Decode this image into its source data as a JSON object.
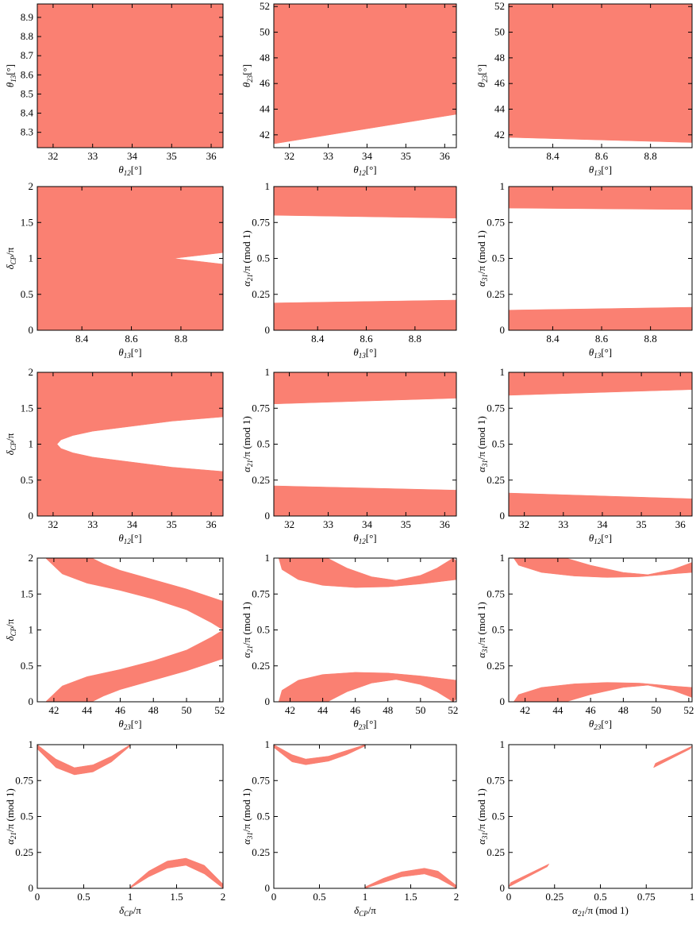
{
  "chart_data": [
    {
      "type": "region",
      "color": "#fa8072",
      "xlabel": {
        "symbol": "θ",
        "sub": "12",
        "unit": "[°]"
      },
      "ylabel": {
        "symbol": "θ",
        "sub": "13",
        "unit": "[°]"
      },
      "xlim": [
        31.6,
        36.3
      ],
      "xticks": [
        32,
        33,
        34,
        35,
        36
      ],
      "ylim": [
        8.22,
        8.97
      ],
      "yticks": [
        8.3,
        8.4,
        8.5,
        8.6,
        8.7,
        8.8,
        8.9
      ],
      "regions": [
        {
          "x": [
            31.6,
            36.3,
            36.3,
            31.6
          ],
          "y": [
            8.22,
            8.22,
            8.97,
            8.97
          ]
        }
      ]
    },
    {
      "type": "region",
      "color": "#fa8072",
      "xlabel": {
        "symbol": "θ",
        "sub": "12",
        "unit": "[°]"
      },
      "ylabel": {
        "symbol": "θ",
        "sub": "23",
        "unit": "[°]"
      },
      "xlim": [
        31.6,
        36.3
      ],
      "xticks": [
        32,
        33,
        34,
        35,
        36
      ],
      "ylim": [
        41,
        52.2
      ],
      "yticks": [
        42,
        44,
        46,
        48,
        50,
        52
      ],
      "regions": [
        {
          "x": [
            31.6,
            36.3,
            36.3,
            31.6
          ],
          "y": [
            41.3,
            43.6,
            52.2,
            52.2
          ]
        }
      ]
    },
    {
      "type": "region",
      "color": "#fa8072",
      "xlabel": {
        "symbol": "θ",
        "sub": "13",
        "unit": "[°]"
      },
      "ylabel": {
        "symbol": "θ",
        "sub": "23",
        "unit": "[°]"
      },
      "xlim": [
        8.22,
        8.97
      ],
      "xticks": [
        8.4,
        8.6,
        8.8
      ],
      "ylim": [
        41,
        52.2
      ],
      "yticks": [
        42,
        44,
        46,
        48,
        50,
        52
      ],
      "regions": [
        {
          "x": [
            8.22,
            8.97,
            8.97,
            8.22
          ],
          "y": [
            41.8,
            41.4,
            52.2,
            52.2
          ]
        }
      ]
    },
    {
      "type": "region",
      "color": "#fa8072",
      "xlabel": {
        "symbol": "θ",
        "sub": "13",
        "unit": "[°]"
      },
      "ylabel": {
        "symbol": "δ",
        "sub": "CP",
        "unit": "/π"
      },
      "xlim": [
        8.22,
        8.97
      ],
      "xticks": [
        8.4,
        8.6,
        8.8
      ],
      "ylim": [
        0,
        2
      ],
      "yticks": [
        0,
        0.5,
        1,
        1.5,
        2
      ],
      "regions": [
        {
          "x": [
            8.22,
            8.97,
            8.97,
            8.77,
            8.97,
            8.97,
            8.22
          ],
          "y": [
            0,
            0,
            0.92,
            1.0,
            1.08,
            2,
            2
          ]
        }
      ]
    },
    {
      "type": "region",
      "color": "#fa8072",
      "xlabel": {
        "symbol": "θ",
        "sub": "13",
        "unit": "[°]"
      },
      "ylabel": {
        "symbol": "α",
        "sub": "21",
        "unit": "/π (mod 1)"
      },
      "xlim": [
        8.22,
        8.97
      ],
      "xticks": [
        8.4,
        8.6,
        8.8
      ],
      "ylim": [
        0,
        1
      ],
      "yticks": [
        0,
        0.25,
        0.5,
        0.75,
        1
      ],
      "regions": [
        {
          "x": [
            8.22,
            8.97,
            8.97,
            8.22
          ],
          "y": [
            0,
            0,
            0.21,
            0.19
          ]
        },
        {
          "x": [
            8.22,
            8.97,
            8.97,
            8.22
          ],
          "y": [
            0.8,
            0.78,
            1,
            1
          ]
        }
      ]
    },
    {
      "type": "region",
      "color": "#fa8072",
      "xlabel": {
        "symbol": "θ",
        "sub": "13",
        "unit": "[°]"
      },
      "ylabel": {
        "symbol": "α",
        "sub": "31",
        "unit": "/π (mod 1)"
      },
      "xlim": [
        8.22,
        8.97
      ],
      "xticks": [
        8.4,
        8.6,
        8.8
      ],
      "ylim": [
        0,
        1
      ],
      "yticks": [
        0,
        0.25,
        0.5,
        0.75,
        1
      ],
      "regions": [
        {
          "x": [
            8.22,
            8.97,
            8.97,
            8.22
          ],
          "y": [
            0,
            0,
            0.16,
            0.14
          ]
        },
        {
          "x": [
            8.22,
            8.97,
            8.97,
            8.22
          ],
          "y": [
            0.85,
            0.84,
            1,
            1
          ]
        }
      ]
    },
    {
      "type": "region",
      "color": "#fa8072",
      "xlabel": {
        "symbol": "θ",
        "sub": "12",
        "unit": "[°]"
      },
      "ylabel": {
        "symbol": "δ",
        "sub": "CP",
        "unit": "/π"
      },
      "xlim": [
        31.6,
        36.3
      ],
      "xticks": [
        32,
        33,
        34,
        35,
        36
      ],
      "ylim": [
        0,
        2
      ],
      "yticks": [
        0,
        0.5,
        1,
        1.5,
        2
      ],
      "regions": [
        {
          "x": [
            31.6,
            36.3,
            36.3,
            35,
            34,
            33,
            32.5,
            32.2,
            32.1,
            32.2,
            32.5,
            33,
            34,
            35,
            36.3,
            36.3,
            31.6
          ],
          "y": [
            0,
            0,
            0.62,
            0.68,
            0.75,
            0.82,
            0.88,
            0.94,
            1,
            1.06,
            1.12,
            1.18,
            1.25,
            1.32,
            1.38,
            2,
            2
          ]
        }
      ]
    },
    {
      "type": "region",
      "color": "#fa8072",
      "xlabel": {
        "symbol": "θ",
        "sub": "12",
        "unit": "[°]"
      },
      "ylabel": {
        "symbol": "α",
        "sub": "21",
        "unit": "/π (mod 1)"
      },
      "xlim": [
        31.6,
        36.3
      ],
      "xticks": [
        32,
        33,
        34,
        35,
        36
      ],
      "ylim": [
        0,
        1
      ],
      "yticks": [
        0,
        0.25,
        0.5,
        0.75,
        1
      ],
      "regions": [
        {
          "x": [
            31.6,
            36.3,
            36.3,
            31.6
          ],
          "y": [
            0,
            0,
            0.18,
            0.21
          ]
        },
        {
          "x": [
            31.6,
            36.3,
            36.3,
            31.6
          ],
          "y": [
            0.78,
            0.82,
            1,
            1
          ]
        }
      ]
    },
    {
      "type": "region",
      "color": "#fa8072",
      "xlabel": {
        "symbol": "θ",
        "sub": "12",
        "unit": "[°]"
      },
      "ylabel": {
        "symbol": "α",
        "sub": "31",
        "unit": "/π (mod 1)"
      },
      "xlim": [
        31.6,
        36.3
      ],
      "xticks": [
        32,
        33,
        34,
        35,
        36
      ],
      "ylim": [
        0,
        1
      ],
      "yticks": [
        0,
        0.25,
        0.5,
        0.75,
        1
      ],
      "regions": [
        {
          "x": [
            31.6,
            36.3,
            36.3,
            31.6
          ],
          "y": [
            0,
            0,
            0.12,
            0.16
          ]
        },
        {
          "x": [
            31.6,
            36.3,
            36.3,
            31.6
          ],
          "y": [
            0.84,
            0.88,
            1,
            1
          ]
        }
      ]
    },
    {
      "type": "region",
      "color": "#fa8072",
      "xlabel": {
        "symbol": "θ",
        "sub": "23",
        "unit": "[°]"
      },
      "ylabel": {
        "symbol": "δ",
        "sub": "CP",
        "unit": "/π"
      },
      "xlim": [
        41,
        52.2
      ],
      "xticks": [
        42,
        44,
        46,
        48,
        50,
        52
      ],
      "ylim": [
        0,
        2
      ],
      "yticks": [
        0,
        0.5,
        1,
        1.5,
        2
      ],
      "regions": [
        {
          "x": [
            41.5,
            42.5,
            44,
            46,
            48,
            50,
            51.5,
            52.2,
            52.2,
            50,
            48,
            46,
            45,
            44.3
          ],
          "y": [
            0,
            0.22,
            0.35,
            0.45,
            0.57,
            0.72,
            0.9,
            1.0,
            0.6,
            0.43,
            0.3,
            0.17,
            0.08,
            0
          ]
        },
        {
          "x": [
            41.5,
            42.5,
            44,
            46,
            48,
            50,
            51.5,
            52.2,
            52.2,
            50,
            48,
            46,
            45,
            44.3
          ],
          "y": [
            2,
            1.78,
            1.65,
            1.55,
            1.43,
            1.28,
            1.1,
            1.0,
            1.4,
            1.57,
            1.7,
            1.83,
            1.92,
            2
          ]
        }
      ]
    },
    {
      "type": "region",
      "color": "#fa8072",
      "xlabel": {
        "symbol": "θ",
        "sub": "23",
        "unit": "[°]"
      },
      "ylabel": {
        "symbol": "α",
        "sub": "21",
        "unit": "/π (mod 1)"
      },
      "xlim": [
        41,
        52.2
      ],
      "xticks": [
        42,
        44,
        46,
        48,
        50,
        52
      ],
      "ylim": [
        0,
        1
      ],
      "yticks": [
        0,
        0.25,
        0.5,
        0.75,
        1
      ],
      "regions": [
        {
          "x": [
            41.3,
            41.5,
            42.5,
            44,
            46,
            48,
            50,
            52.2,
            52.2,
            52,
            51,
            50,
            48.5,
            47,
            45.5,
            44.3
          ],
          "y": [
            1,
            0.92,
            0.85,
            0.81,
            0.795,
            0.8,
            0.82,
            0.85,
            0.98,
            1,
            0.93,
            0.88,
            0.845,
            0.87,
            0.93,
            1
          ]
        },
        {
          "x": [
            41.3,
            41.5,
            42.5,
            44,
            46,
            48,
            50,
            52.2,
            52.2,
            52,
            51,
            50,
            48.5,
            47,
            45.5,
            44.3
          ],
          "y": [
            0,
            0.08,
            0.15,
            0.19,
            0.205,
            0.2,
            0.18,
            0.15,
            0.02,
            0,
            0.07,
            0.12,
            0.155,
            0.13,
            0.07,
            0
          ]
        }
      ]
    },
    {
      "type": "region",
      "color": "#fa8072",
      "xlabel": {
        "symbol": "θ",
        "sub": "23",
        "unit": "[°]"
      },
      "ylabel": {
        "symbol": "α",
        "sub": "31",
        "unit": "/π (mod 1)"
      },
      "xlim": [
        41,
        52.2
      ],
      "xticks": [
        42,
        44,
        46,
        48,
        50,
        52
      ],
      "ylim": [
        0,
        1
      ],
      "yticks": [
        0,
        0.25,
        0.5,
        0.75,
        1
      ],
      "regions": [
        {
          "x": [
            41.3,
            41.6,
            43,
            45,
            47,
            49,
            51,
            52.2,
            52.2,
            51,
            49.5,
            48,
            46,
            44.5
          ],
          "y": [
            1,
            0.95,
            0.9,
            0.875,
            0.865,
            0.87,
            0.89,
            0.9,
            0.97,
            0.92,
            0.885,
            0.9,
            0.95,
            1
          ]
        },
        {
          "x": [
            41.3,
            41.6,
            43,
            45,
            47,
            49,
            51,
            52.2,
            52.2,
            51,
            49.5,
            48,
            46,
            44.5
          ],
          "y": [
            0,
            0.05,
            0.1,
            0.125,
            0.135,
            0.13,
            0.11,
            0.1,
            0.03,
            0.08,
            0.115,
            0.1,
            0.05,
            0
          ]
        }
      ]
    },
    {
      "type": "region",
      "color": "#fa8072",
      "xlabel": {
        "symbol": "δ",
        "sub": "CP",
        "unit": "/π"
      },
      "ylabel": {
        "symbol": "α",
        "sub": "21",
        "unit": "/π (mod 1)"
      },
      "xlim": [
        0,
        2
      ],
      "xticks": [
        0,
        0.5,
        1,
        1.5,
        2
      ],
      "ylim": [
        0,
        1
      ],
      "yticks": [
        0,
        0.25,
        0.5,
        0.75,
        1
      ],
      "regions": [
        {
          "x": [
            0,
            0.2,
            0.4,
            0.6,
            0.8,
            1,
            1,
            0.8,
            0.6,
            0.4,
            0.2,
            0
          ],
          "y": [
            1,
            0.9,
            0.84,
            0.86,
            0.92,
            1,
            0.99,
            0.88,
            0.81,
            0.79,
            0.84,
            0.97
          ]
        },
        {
          "x": [
            2,
            1.8,
            1.6,
            1.4,
            1.2,
            1,
            1,
            1.2,
            1.4,
            1.6,
            1.8,
            2
          ],
          "y": [
            0,
            0.1,
            0.16,
            0.14,
            0.08,
            0,
            0.01,
            0.12,
            0.19,
            0.21,
            0.16,
            0.03
          ]
        }
      ]
    },
    {
      "type": "region",
      "color": "#fa8072",
      "xlabel": {
        "symbol": "δ",
        "sub": "CP",
        "unit": "/π"
      },
      "ylabel": {
        "symbol": "α",
        "sub": "31",
        "unit": "/π (mod 1)"
      },
      "xlim": [
        0,
        2
      ],
      "xticks": [
        0,
        0.5,
        1,
        1.5,
        2
      ],
      "ylim": [
        0,
        1
      ],
      "yticks": [
        0,
        0.25,
        0.5,
        0.75,
        1
      ],
      "regions": [
        {
          "x": [
            0,
            0.2,
            0.35,
            0.6,
            0.8,
            1,
            1,
            0.8,
            0.6,
            0.35,
            0.2,
            0
          ],
          "y": [
            1,
            0.93,
            0.9,
            0.92,
            0.96,
            1,
            0.99,
            0.93,
            0.885,
            0.86,
            0.88,
            0.98
          ]
        },
        {
          "x": [
            2,
            1.8,
            1.65,
            1.4,
            1.2,
            1,
            1,
            1.2,
            1.4,
            1.65,
            1.8,
            2
          ],
          "y": [
            0,
            0.07,
            0.1,
            0.08,
            0.04,
            0,
            0.01,
            0.07,
            0.115,
            0.14,
            0.12,
            0.02
          ]
        }
      ]
    },
    {
      "type": "region",
      "color": "#fa8072",
      "xlabel": {
        "symbol": "α",
        "sub": "21",
        "unit": "/π (mod 1)"
      },
      "ylabel": {
        "symbol": "α",
        "sub": "31",
        "unit": "/π (mod 1)"
      },
      "xlim": [
        0,
        1
      ],
      "xticks": [
        0,
        0.25,
        0.5,
        0.75,
        1
      ],
      "ylim": [
        0,
        1
      ],
      "yticks": [
        0,
        0.25,
        0.5,
        0.75,
        1
      ],
      "regions": [
        {
          "x": [
            0,
            0.21,
            0.22,
            0.01
          ],
          "y": [
            0.01,
            0.15,
            0.17,
            0.04
          ]
        },
        {
          "x": [
            0.79,
            0.99,
            1,
            0.8
          ],
          "y": [
            0.84,
            0.97,
            0.99,
            0.87
          ]
        }
      ]
    }
  ]
}
